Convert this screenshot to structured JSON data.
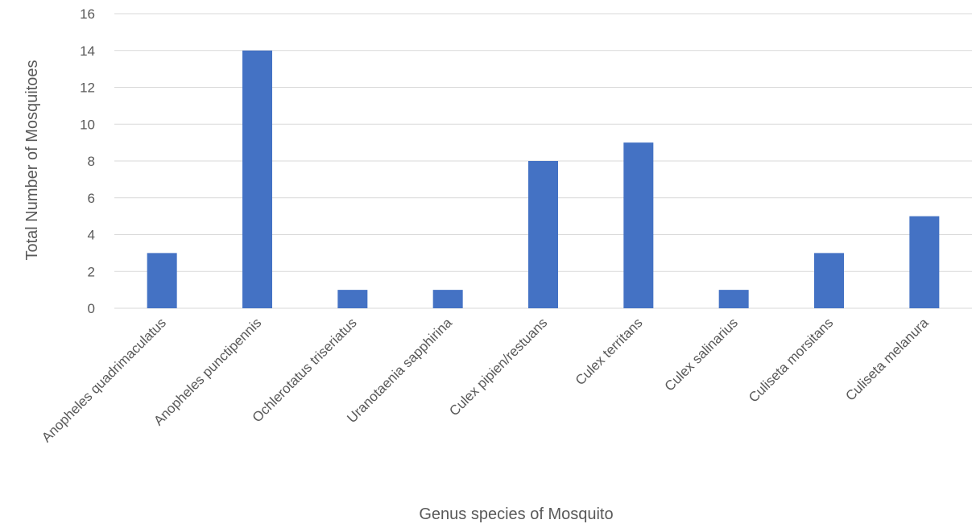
{
  "chart_data": {
    "type": "bar",
    "title": "",
    "xlabel": "Genus species of Mosquito",
    "ylabel": "Total Number of Mosquitoes",
    "ylim": [
      0,
      16
    ],
    "yticks": [
      0,
      2,
      4,
      6,
      8,
      10,
      12,
      14,
      16
    ],
    "grid": true,
    "legend": "none",
    "bar_color": "#4472C4",
    "categories": [
      "Anopheles quadrimaculatus",
      "Anopheles punctipennis",
      "Ochlerotatus triseriatus",
      "Uranotaenia sapphirina",
      "Culex pipien/restuans",
      "Culex territans",
      "Culex salinarius",
      "Culiseta morsitans",
      "Culiseta melanura"
    ],
    "values": [
      3,
      14,
      1,
      1,
      8,
      9,
      1,
      3,
      5
    ]
  }
}
